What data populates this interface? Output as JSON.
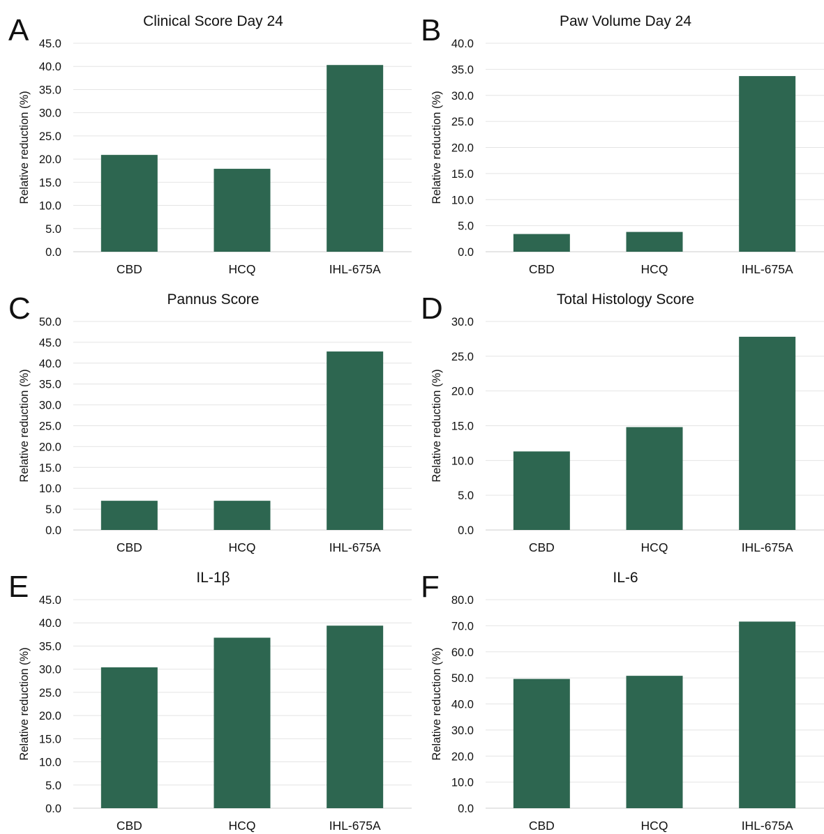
{
  "colors": {
    "bar": "#2d6650",
    "grid": "#e4e4e4",
    "axis": "#cccccc",
    "text": "#111111"
  },
  "chart_data": [
    {
      "panel": "A",
      "type": "bar",
      "title": "Clinical Score Day 24",
      "ylabel": "Relative reduction (%)",
      "xlabel": "",
      "categories": [
        "CBD",
        "HCQ",
        "IHL-675A"
      ],
      "values": [
        20.9,
        17.9,
        40.3
      ],
      "ylim": [
        0,
        45
      ],
      "yticks": [
        "0.0",
        "5.0",
        "10.0",
        "15.0",
        "20.0",
        "25.0",
        "30.0",
        "35.0",
        "40.0",
        "45.0"
      ],
      "grid": true,
      "legend": false
    },
    {
      "panel": "B",
      "type": "bar",
      "title": "Paw Volume Day 24",
      "ylabel": "Relative reduction (%)",
      "xlabel": "",
      "categories": [
        "CBD",
        "HCQ",
        "IHL-675A"
      ],
      "values": [
        3.4,
        3.8,
        33.7
      ],
      "ylim": [
        0,
        40
      ],
      "yticks": [
        "0.0",
        "5.0",
        "10.0",
        "15.0",
        "20.0",
        "25.0",
        "30.0",
        "35.0",
        "40.0"
      ],
      "grid": true,
      "legend": false
    },
    {
      "panel": "C",
      "type": "bar",
      "title": "Pannus Score",
      "ylabel": "Relative reduction (%)",
      "xlabel": "",
      "categories": [
        "CBD",
        "HCQ",
        "IHL-675A"
      ],
      "values": [
        7.0,
        7.0,
        42.8
      ],
      "ylim": [
        0,
        50
      ],
      "yticks": [
        "0.0",
        "5.0",
        "10.0",
        "15.0",
        "20.0",
        "25.0",
        "30.0",
        "35.0",
        "40.0",
        "45.0",
        "50.0"
      ],
      "grid": true,
      "legend": false
    },
    {
      "panel": "D",
      "type": "bar",
      "title": "Total Histology Score",
      "ylabel": "Relative reduction (%)",
      "xlabel": "",
      "categories": [
        "CBD",
        "HCQ",
        "IHL-675A"
      ],
      "values": [
        11.3,
        14.8,
        27.8
      ],
      "ylim": [
        0,
        30
      ],
      "yticks": [
        "0.0",
        "5.0",
        "10.0",
        "15.0",
        "20.0",
        "25.0",
        "30.0"
      ],
      "grid": true,
      "legend": false
    },
    {
      "panel": "E",
      "type": "bar",
      "title": "IL-1β",
      "ylabel": "Relative reduction (%)",
      "xlabel": "",
      "categories": [
        "CBD",
        "HCQ",
        "IHL-675A"
      ],
      "values": [
        30.4,
        36.8,
        39.4
      ],
      "ylim": [
        0,
        45
      ],
      "yticks": [
        "0.0",
        "5.0",
        "10.0",
        "15.0",
        "20.0",
        "25.0",
        "30.0",
        "35.0",
        "40.0",
        "45.0"
      ],
      "grid": true,
      "legend": false
    },
    {
      "panel": "F",
      "type": "bar",
      "title": "IL-6",
      "ylabel": "Relative reduction (%)",
      "xlabel": "",
      "categories": [
        "CBD",
        "HCQ",
        "IHL-675A"
      ],
      "values": [
        49.6,
        50.8,
        71.6
      ],
      "ylim": [
        0,
        80
      ],
      "yticks": [
        "0.0",
        "10.0",
        "20.0",
        "30.0",
        "40.0",
        "50.0",
        "60.0",
        "70.0",
        "80.0"
      ],
      "grid": true,
      "legend": false
    }
  ]
}
